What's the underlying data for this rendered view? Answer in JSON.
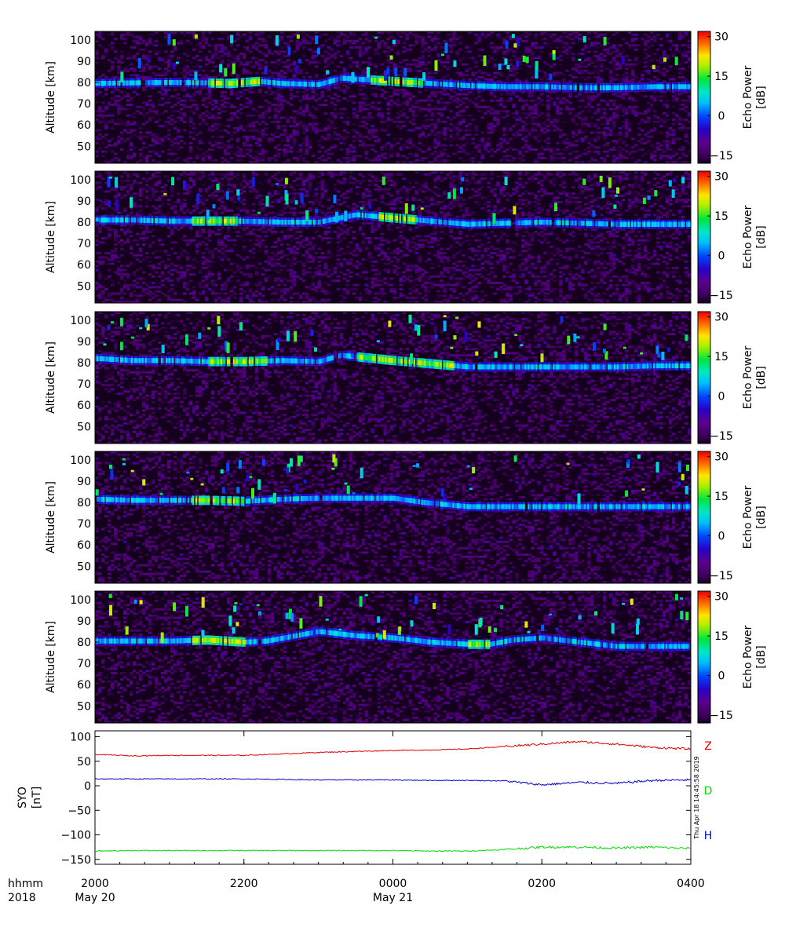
{
  "chart_data": [
    {
      "type": "heatmap",
      "panel": 1,
      "ylabel": "Altitude [km]",
      "yticks": [
        50,
        60,
        70,
        80,
        90,
        100
      ],
      "ylim": [
        42,
        104
      ],
      "xlim_hours": [
        20,
        28
      ],
      "colorbar": {
        "label_line1": "Echo Power",
        "label_line2": "[dB]",
        "ticks": [
          -15,
          0,
          15,
          30
        ],
        "range": [
          -18,
          32
        ]
      },
      "echo_layer_km": [
        [
          20.0,
          79.5
        ],
        [
          20.5,
          79.8
        ],
        [
          21.0,
          80.0
        ],
        [
          21.5,
          79.8
        ],
        [
          21.8,
          79.5
        ],
        [
          22.2,
          80.5
        ],
        [
          22.5,
          79.5
        ],
        [
          23.0,
          79.0
        ],
        [
          23.3,
          82.0
        ],
        [
          24.0,
          80.5
        ],
        [
          24.5,
          79.5
        ],
        [
          25.0,
          78.5
        ],
        [
          25.5,
          78.0
        ],
        [
          26.0,
          78.0
        ],
        [
          26.5,
          77.5
        ],
        [
          27.0,
          77.5
        ],
        [
          27.5,
          78.0
        ],
        [
          28.0,
          78.0
        ]
      ],
      "strong_echo_hours": [
        [
          21.5,
          22.2
        ],
        [
          23.7,
          24.4
        ]
      ]
    },
    {
      "type": "heatmap",
      "panel": 2,
      "ylabel": "Altitude [km]",
      "yticks": [
        50,
        60,
        70,
        80,
        90,
        100
      ],
      "ylim": [
        42,
        104
      ],
      "xlim_hours": [
        20,
        28
      ],
      "colorbar": {
        "label_line1": "Echo Power",
        "label_line2": "[dB]",
        "ticks": [
          -15,
          0,
          15,
          30
        ],
        "range": [
          -18,
          32
        ]
      },
      "echo_layer_km": [
        [
          20.0,
          81.0
        ],
        [
          20.5,
          81.0
        ],
        [
          21.0,
          80.5
        ],
        [
          21.5,
          80.5
        ],
        [
          21.9,
          80.5
        ],
        [
          22.5,
          80.0
        ],
        [
          23.0,
          80.0
        ],
        [
          23.5,
          83.5
        ],
        [
          24.0,
          82.0
        ],
        [
          24.5,
          80.5
        ],
        [
          25.0,
          79.0
        ],
        [
          25.5,
          79.5
        ],
        [
          26.0,
          80.0
        ],
        [
          26.5,
          79.5
        ],
        [
          27.0,
          79.0
        ],
        [
          27.5,
          79.0
        ],
        [
          28.0,
          79.0
        ]
      ],
      "strong_echo_hours": [
        [
          21.3,
          21.9
        ],
        [
          23.8,
          24.3
        ]
      ]
    },
    {
      "type": "heatmap",
      "panel": 3,
      "ylabel": "Altitude [km]",
      "yticks": [
        50,
        60,
        70,
        80,
        90,
        100
      ],
      "ylim": [
        42,
        104
      ],
      "xlim_hours": [
        20,
        28
      ],
      "colorbar": {
        "label_line1": "Echo Power",
        "label_line2": "[dB]",
        "ticks": [
          -15,
          0,
          15,
          30
        ],
        "range": [
          -18,
          32
        ]
      },
      "echo_layer_km": [
        [
          20.0,
          82.0
        ],
        [
          20.5,
          81.0
        ],
        [
          21.0,
          81.0
        ],
        [
          21.5,
          80.5
        ],
        [
          22.0,
          80.5
        ],
        [
          22.5,
          81.0
        ],
        [
          23.0,
          80.5
        ],
        [
          23.3,
          83.5
        ],
        [
          24.0,
          81.0
        ],
        [
          24.5,
          79.5
        ],
        [
          25.0,
          78.0
        ],
        [
          25.3,
          78.0
        ],
        [
          26.0,
          78.0
        ],
        [
          26.5,
          78.0
        ],
        [
          27.0,
          78.0
        ],
        [
          27.5,
          78.5
        ],
        [
          28.0,
          78.5
        ]
      ],
      "strong_echo_hours": [
        [
          21.5,
          22.3
        ],
        [
          23.5,
          24.8
        ]
      ]
    },
    {
      "type": "heatmap",
      "panel": 4,
      "ylabel": "Altitude [km]",
      "yticks": [
        50,
        60,
        70,
        80,
        90,
        100
      ],
      "ylim": [
        42,
        104
      ],
      "xlim_hours": [
        20,
        28
      ],
      "colorbar": {
        "label_line1": "Echo Power",
        "label_line2": "[dB]",
        "ticks": [
          -15,
          0,
          15,
          30
        ],
        "range": [
          -18,
          32
        ]
      },
      "echo_layer_km": [
        [
          20.0,
          81.5
        ],
        [
          20.5,
          81.0
        ],
        [
          21.0,
          81.0
        ],
        [
          21.5,
          81.0
        ],
        [
          22.0,
          80.5
        ],
        [
          22.5,
          81.5
        ],
        [
          23.0,
          82.0
        ],
        [
          23.5,
          82.0
        ],
        [
          24.0,
          82.0
        ],
        [
          24.4,
          80.0
        ],
        [
          25.0,
          78.0
        ],
        [
          25.5,
          78.0
        ],
        [
          26.0,
          78.0
        ],
        [
          26.5,
          78.0
        ],
        [
          27.0,
          78.0
        ],
        [
          27.5,
          78.0
        ],
        [
          28.0,
          78.0
        ]
      ],
      "strong_echo_hours": [
        [
          21.3,
          22.0
        ]
      ]
    },
    {
      "type": "heatmap",
      "panel": 5,
      "ylabel": "Altitude [km]",
      "yticks": [
        50,
        60,
        70,
        80,
        90,
        100
      ],
      "ylim": [
        42,
        104
      ],
      "xlim_hours": [
        20,
        28
      ],
      "colorbar": {
        "label_line1": "Echo Power",
        "label_line2": "[dB]",
        "ticks": [
          -15,
          0,
          15,
          30
        ],
        "range": [
          -18,
          32
        ]
      },
      "echo_layer_km": [
        [
          20.0,
          80.5
        ],
        [
          20.5,
          80.5
        ],
        [
          21.0,
          80.5
        ],
        [
          21.5,
          81.0
        ],
        [
          22.0,
          80.0
        ],
        [
          22.3,
          80.5
        ],
        [
          23.0,
          85.0
        ],
        [
          23.5,
          83.0
        ],
        [
          24.0,
          82.0
        ],
        [
          24.5,
          80.0
        ],
        [
          25.0,
          79.0
        ],
        [
          25.3,
          79.0
        ],
        [
          25.6,
          81.0
        ],
        [
          26.0,
          82.0
        ],
        [
          26.5,
          80.0
        ],
        [
          27.0,
          78.0
        ],
        [
          27.5,
          78.0
        ],
        [
          28.0,
          78.0
        ]
      ],
      "strong_echo_hours": [
        [
          21.3,
          22.0
        ],
        [
          25.0,
          25.3
        ]
      ]
    },
    {
      "type": "line",
      "panel": 6,
      "ylabel_line1": "SYO",
      "ylabel_line2": "[nT]",
      "yticks": [
        100,
        50,
        0,
        -50,
        -100,
        -150
      ],
      "ylim": [
        -160,
        112
      ],
      "xlim_hours": [
        20,
        28
      ],
      "x_hours": [
        20.0,
        20.5,
        21.0,
        21.5,
        22.0,
        22.5,
        23.0,
        23.5,
        24.0,
        24.5,
        25.0,
        25.5,
        26.0,
        26.5,
        27.0,
        27.5,
        28.0
      ],
      "series": [
        {
          "name": "Z",
          "color": "#dd0000",
          "values": [
            64,
            61,
            62,
            62,
            62,
            65,
            68,
            70,
            72,
            73,
            75,
            80,
            85,
            90,
            85,
            78,
            75
          ]
        },
        {
          "name": "D",
          "color": "#00dd00",
          "values": [
            -133,
            -132,
            -132,
            -132,
            -132,
            -132,
            -132,
            -132,
            -132,
            -133,
            -133,
            -130,
            -125,
            -125,
            -127,
            -125,
            -128
          ]
        },
        {
          "name": "H",
          "color": "#0000cc",
          "values": [
            14,
            14,
            14,
            14,
            14,
            13,
            12,
            12,
            12,
            11,
            11,
            10,
            2,
            7,
            5,
            11,
            12
          ]
        }
      ],
      "series_labels": [
        "Z",
        "D",
        "H"
      ],
      "timestamp": "Thu Apr 18 14:45:58 2019"
    }
  ],
  "x_axis": {
    "corner_line1": "hhmm",
    "corner_line2": "2018",
    "ticks": [
      {
        "hour": 20,
        "label": "2000",
        "date": "May 20"
      },
      {
        "hour": 22,
        "label": "2200",
        "date": ""
      },
      {
        "hour": 24,
        "label": "0000",
        "date": "May 21"
      },
      {
        "hour": 26,
        "label": "0200",
        "date": ""
      },
      {
        "hour": 28,
        "label": "0400",
        "date": ""
      }
    ]
  }
}
